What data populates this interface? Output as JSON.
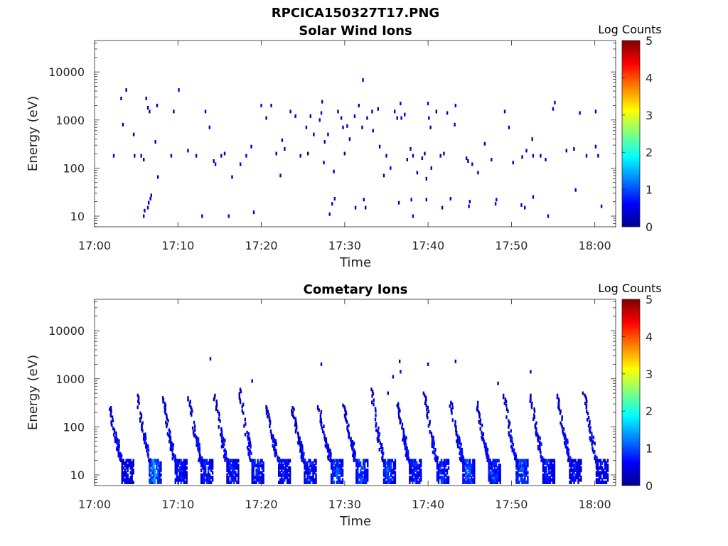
{
  "figure": {
    "filename_title": "RPCICA150327T17.PNG"
  },
  "colormap": {
    "name": "jet",
    "stops": [
      "#00008f",
      "#0000ff",
      "#0080ff",
      "#00ffff",
      "#80ff80",
      "#ffff00",
      "#ff8000",
      "#ff0000",
      "#800000"
    ]
  },
  "chart_data": [
    {
      "type": "heatmap",
      "title": "Solar Wind Ions",
      "xlabel": "Time",
      "ylabel": "Energy (eV)",
      "x_ticks": [
        "17:00",
        "17:10",
        "17:20",
        "17:30",
        "17:40",
        "17:50",
        "18:00"
      ],
      "x_tick_minutes": [
        0,
        10,
        20,
        30,
        40,
        50,
        60
      ],
      "xlim_minutes": [
        0,
        62.5
      ],
      "y_scale": "log",
      "y_ticks": [
        "10",
        "100",
        "1000",
        "10000"
      ],
      "y_tick_values": [
        10,
        100,
        1000,
        10000
      ],
      "ylim": [
        6,
        45000
      ],
      "colorbar": {
        "label": "Log Counts",
        "ticks": [
          "0",
          "1",
          "2",
          "3",
          "4",
          "5"
        ],
        "range": [
          0,
          5
        ]
      },
      "cells": [
        [
          2.3,
          180,
          0.3
        ],
        [
          3.2,
          2800,
          0.3
        ],
        [
          3.4,
          800,
          0.3
        ],
        [
          3.8,
          4200,
          0.3
        ],
        [
          4.7,
          500,
          0.3
        ],
        [
          4.8,
          180,
          0.3
        ],
        [
          5.6,
          180,
          0.3
        ],
        [
          5.9,
          150,
          0.3
        ],
        [
          6.2,
          2800,
          0.3
        ],
        [
          6.4,
          1800,
          0.3
        ],
        [
          6.6,
          1500,
          0.3
        ],
        [
          7.3,
          350,
          0.3
        ],
        [
          7.5,
          2000,
          0.3
        ],
        [
          7.6,
          65,
          0.3
        ],
        [
          10.1,
          4200,
          0.3
        ],
        [
          9.2,
          180,
          0.3
        ],
        [
          9.5,
          1500,
          0.3
        ],
        [
          11.2,
          230,
          0.3
        ],
        [
          12.2,
          180,
          0.3
        ],
        [
          13.3,
          1500,
          0.3
        ],
        [
          13.8,
          700,
          0.3
        ],
        [
          14.3,
          140,
          0.3
        ],
        [
          14.5,
          120,
          0.3
        ],
        [
          15.2,
          180,
          0.3
        ],
        [
          15.6,
          200,
          0.3
        ],
        [
          16.5,
          65,
          0.3
        ],
        [
          17.5,
          120,
          0.3
        ],
        [
          18.2,
          180,
          0.3
        ],
        [
          18.8,
          280,
          0.3
        ],
        [
          20.0,
          2000,
          0.3
        ],
        [
          20.6,
          1100,
          0.3
        ],
        [
          21.2,
          2000,
          0.3
        ],
        [
          21.8,
          200,
          0.3
        ],
        [
          22.3,
          70,
          0.3
        ],
        [
          22.5,
          380,
          0.3
        ],
        [
          22.8,
          250,
          0.3
        ],
        [
          23.5,
          1500,
          0.3
        ],
        [
          24.1,
          1200,
          0.3
        ],
        [
          24.7,
          180,
          0.3
        ],
        [
          25.4,
          700,
          0.3
        ],
        [
          25.6,
          200,
          0.3
        ],
        [
          25.9,
          1200,
          0.3
        ],
        [
          26.3,
          500,
          0.3
        ],
        [
          27.0,
          1000,
          0.5
        ],
        [
          27.2,
          1400,
          0.5
        ],
        [
          27.3,
          2400,
          0.5
        ],
        [
          27.5,
          130,
          0.5
        ],
        [
          27.6,
          350,
          0.3
        ],
        [
          28.0,
          500,
          0.3
        ],
        [
          28.7,
          85,
          0.3
        ],
        [
          29.2,
          1500,
          0.3
        ],
        [
          29.6,
          1100,
          0.3
        ],
        [
          29.8,
          700,
          0.3
        ],
        [
          30.0,
          200,
          0.3
        ],
        [
          30.3,
          750,
          0.3
        ],
        [
          30.6,
          400,
          0.3
        ],
        [
          31.2,
          1200,
          0.3
        ],
        [
          31.7,
          2000,
          0.3
        ],
        [
          32.1,
          700,
          0.3
        ],
        [
          32.2,
          6800,
          0.3
        ],
        [
          32.7,
          1100,
          0.3
        ],
        [
          33.3,
          1500,
          0.3
        ],
        [
          33.4,
          600,
          0.3
        ],
        [
          34.0,
          1700,
          0.3
        ],
        [
          34.2,
          280,
          0.3
        ],
        [
          34.7,
          70,
          0.3
        ],
        [
          35.0,
          180,
          0.3
        ],
        [
          35.5,
          100,
          0.3
        ],
        [
          36.0,
          1500,
          0.3
        ],
        [
          36.3,
          1100,
          0.3
        ],
        [
          36.7,
          2200,
          0.5
        ],
        [
          36.8,
          1100,
          0.5
        ],
        [
          37.2,
          1300,
          0.5
        ],
        [
          37.5,
          150,
          0.3
        ],
        [
          37.9,
          250,
          0.3
        ],
        [
          38.2,
          180,
          0.3
        ],
        [
          38.7,
          80,
          0.3
        ],
        [
          39.3,
          160,
          0.3
        ],
        [
          39.6,
          200,
          0.3
        ],
        [
          39.8,
          60,
          0.3
        ],
        [
          40.0,
          2200,
          0.5
        ],
        [
          40.1,
          1100,
          0.5
        ],
        [
          40.3,
          700,
          0.3
        ],
        [
          40.4,
          100,
          0.3
        ],
        [
          41.0,
          1500,
          0.3
        ],
        [
          41.5,
          180,
          0.3
        ],
        [
          41.9,
          200,
          0.3
        ],
        [
          42.3,
          1400,
          0.3
        ],
        [
          43.2,
          800,
          0.3
        ],
        [
          43.3,
          2000,
          0.5
        ],
        [
          44.6,
          160,
          0.3
        ],
        [
          44.8,
          140,
          0.3
        ],
        [
          45.3,
          120,
          0.3
        ],
        [
          46.0,
          80,
          0.3
        ],
        [
          46.8,
          320,
          0.3
        ],
        [
          47.6,
          150,
          0.3
        ],
        [
          49.2,
          1500,
          0.3
        ],
        [
          49.7,
          700,
          0.3
        ],
        [
          50.2,
          130,
          0.3
        ],
        [
          51.3,
          170,
          0.3
        ],
        [
          51.8,
          230,
          0.3
        ],
        [
          52.5,
          400,
          0.3
        ],
        [
          52.6,
          180,
          0.3
        ],
        [
          53.5,
          180,
          0.3
        ],
        [
          54.1,
          150,
          0.3
        ],
        [
          55.0,
          1700,
          0.3
        ],
        [
          55.2,
          2300,
          0.3
        ],
        [
          56.6,
          230,
          0.3
        ],
        [
          57.5,
          250,
          0.3
        ],
        [
          58.2,
          1400,
          0.3
        ],
        [
          59.0,
          180,
          0.3
        ],
        [
          60.1,
          280,
          0.3
        ],
        [
          60.1,
          1500,
          0.3
        ],
        [
          60.4,
          180,
          0.3
        ],
        [
          5.9,
          10,
          0.5
        ],
        [
          6.0,
          13,
          0.5
        ],
        [
          6.4,
          15,
          0.5
        ],
        [
          6.5,
          19,
          0.5
        ],
        [
          6.7,
          23,
          0.5
        ],
        [
          6.8,
          27,
          0.5
        ],
        [
          12.9,
          10,
          0.5
        ],
        [
          16.1,
          10,
          0.5
        ],
        [
          19.1,
          12,
          0.5
        ],
        [
          28.2,
          11,
          0.5
        ],
        [
          28.5,
          18,
          0.5
        ],
        [
          28.8,
          23,
          0.5
        ],
        [
          31.3,
          15,
          0.5
        ],
        [
          32.3,
          22,
          0.5
        ],
        [
          32.5,
          15,
          0.5
        ],
        [
          36.5,
          19,
          0.5
        ],
        [
          38.0,
          22,
          0.5
        ],
        [
          38.2,
          10,
          0.5
        ],
        [
          39.8,
          22,
          0.5
        ],
        [
          41.7,
          15,
          0.5
        ],
        [
          42.7,
          23,
          0.5
        ],
        [
          44.9,
          16,
          0.5
        ],
        [
          45.0,
          20,
          0.5
        ],
        [
          48.1,
          18,
          0.5
        ],
        [
          48.2,
          22,
          0.5
        ],
        [
          51.2,
          17,
          0.5
        ],
        [
          51.6,
          15,
          0.5
        ],
        [
          52.6,
          25,
          0.3
        ],
        [
          54.4,
          10,
          0.5
        ],
        [
          57.7,
          35,
          0.3
        ],
        [
          60.8,
          16,
          0.5
        ]
      ]
    },
    {
      "type": "heatmap",
      "title": "Cometary Ions",
      "xlabel": "Time",
      "ylabel": "Energy (eV)",
      "x_ticks": [
        "17:00",
        "17:10",
        "17:20",
        "17:30",
        "17:40",
        "17:50",
        "18:00"
      ],
      "x_tick_minutes": [
        0,
        10,
        20,
        30,
        40,
        50,
        60
      ],
      "xlim_minutes": [
        0,
        62.5
      ],
      "y_scale": "log",
      "y_ticks": [
        "10",
        "100",
        "1000",
        "10000"
      ],
      "y_tick_values": [
        10,
        100,
        1000,
        10000
      ],
      "ylim": [
        6,
        45000
      ],
      "colorbar": {
        "label": "Log Counts",
        "ticks": [
          "0",
          "1",
          "2",
          "3",
          "4",
          "5"
        ],
        "range": [
          0,
          5
        ]
      },
      "bursts": [
        {
          "t": 3.3,
          "peak": 0.8,
          "arc_max_e": 250
        },
        {
          "t": 6.6,
          "peak": 1.7,
          "arc_max_e": 450
        },
        {
          "t": 9.7,
          "peak": 1.0,
          "arc_max_e": 400
        },
        {
          "t": 12.8,
          "peak": 1.1,
          "arc_max_e": 400
        },
        {
          "t": 15.9,
          "peak": 1.0,
          "arc_max_e": 450
        },
        {
          "t": 18.9,
          "peak": 1.2,
          "arc_max_e": 600
        },
        {
          "t": 22.1,
          "peak": 1.0,
          "arc_max_e": 260
        },
        {
          "t": 25.2,
          "peak": 1.1,
          "arc_max_e": 250
        },
        {
          "t": 28.4,
          "peak": 1.3,
          "arc_max_e": 260
        },
        {
          "t": 31.4,
          "peak": 1.3,
          "arc_max_e": 280
        },
        {
          "t": 34.7,
          "peak": 1.3,
          "arc_max_e": 600
        },
        {
          "t": 37.8,
          "peak": 1.2,
          "arc_max_e": 300
        },
        {
          "t": 41.1,
          "peak": 1.2,
          "arc_max_e": 500
        },
        {
          "t": 44.2,
          "peak": 1.4,
          "arc_max_e": 320
        },
        {
          "t": 47.3,
          "peak": 1.3,
          "arc_max_e": 320
        },
        {
          "t": 50.6,
          "peak": 1.5,
          "arc_max_e": 450
        },
        {
          "t": 53.8,
          "peak": 1.1,
          "arc_max_e": 450
        },
        {
          "t": 57.0,
          "peak": 0.9,
          "arc_max_e": 450
        },
        {
          "t": 60.2,
          "peak": 0.9,
          "arc_max_e": 500
        }
      ],
      "cells": [
        [
          13.9,
          2600,
          0.3
        ],
        [
          27.2,
          2000,
          0.3
        ],
        [
          36.6,
          2300,
          0.3
        ],
        [
          40.0,
          2000,
          0.3
        ],
        [
          43.3,
          2300,
          0.3
        ],
        [
          35.8,
          1100,
          0.3
        ],
        [
          36.7,
          1400,
          0.3
        ],
        [
          35.2,
          500,
          0.3
        ],
        [
          48.4,
          800,
          0.3
        ],
        [
          52.3,
          1400,
          0.3
        ],
        [
          18.9,
          900,
          0.3
        ]
      ]
    }
  ]
}
